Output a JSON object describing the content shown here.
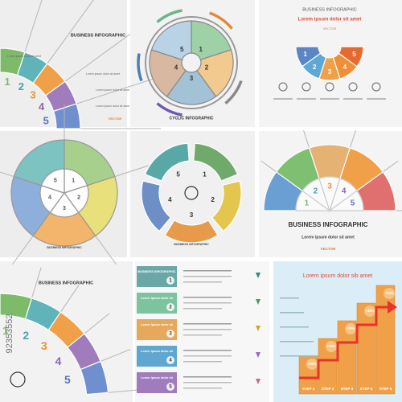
{
  "panels": [
    {
      "title": "BUSINESS INFOGRAPHIC",
      "lines": [
        "Lorem ipsum dolor sit amet",
        "Lorem ipsum dolor sit amet",
        "Lorem ipsum dolor sit amet",
        "Lorem ipsum dolor sit amet"
      ],
      "vector": "VECTOR",
      "numbers": [
        "1",
        "2",
        "3",
        "4",
        "5"
      ]
    },
    {
      "title": "CYCLIC INFOGRAPHIC",
      "numbers": [
        "1",
        "2",
        "3",
        "4",
        "5"
      ]
    },
    {
      "title": "BUSINESS INFOGRAPHIC",
      "subtitle": "Lorem ipsum dolor sit amet",
      "vector": "VECTOR",
      "numbers": [
        "1",
        "2",
        "3",
        "4",
        "5"
      ]
    },
    {
      "title": "BUSINESS INFOGRAPHIC",
      "numbers": [
        "1",
        "2",
        "3",
        "4",
        "5"
      ]
    },
    {
      "title": "BUSINESS INFOGRAPHIC",
      "numbers": [
        "1",
        "2",
        "3",
        "4",
        "5"
      ]
    },
    {
      "title": "BUSINESS INFOGRAPHIC",
      "subtitle": "Lorem ipsum dolor sit amet",
      "vector": "VECTOR",
      "numbers": [
        "1",
        "2",
        "3",
        "4",
        "5"
      ]
    },
    {
      "title": "BUSINESS INFOGRAPHIC",
      "code": "92353552",
      "numbers": [
        "1",
        "2",
        "3",
        "4",
        "5"
      ]
    },
    {
      "rows": [
        {
          "label": "BUSINESS INFOGRAPHIC",
          "number": "1"
        },
        {
          "label": "Lorem ipsum dolor sit",
          "number": "2"
        },
        {
          "label": "Lorem ipsum dolor sit",
          "number": "3"
        },
        {
          "label": "Lorem ipsum dolor sit",
          "number": "4"
        },
        {
          "label": "Lorem ipsum dolor sit",
          "number": "5"
        }
      ]
    },
    {
      "title": "Lorem ipsum dolor sib amet",
      "steps": [
        "STEP 1",
        "STEP 2",
        "STEP 3",
        "STEP 4",
        "STEP 5"
      ],
      "percents": [
        "+10%",
        "+20%",
        "+30%",
        "+40%",
        "+50%"
      ]
    }
  ]
}
